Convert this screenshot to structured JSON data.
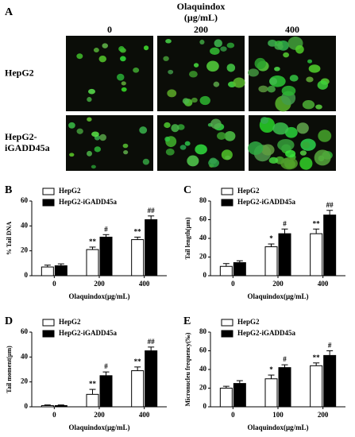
{
  "panel_a": {
    "panel": "A",
    "title": [
      "Olaquindox",
      "(μg/mL)"
    ],
    "columns": [
      "0",
      "200",
      "400"
    ],
    "rows": [
      [
        "HepG2"
      ],
      [
        "HepG2-",
        "iGADD45a"
      ]
    ]
  },
  "chart_data": [
    {
      "type": "bar",
      "panel": "B",
      "ylabel": "% Tail DNA",
      "xlabel": "Olaquindox(μg/mL)",
      "categories": [
        "0",
        "200",
        "400"
      ],
      "ylim": [
        0,
        60
      ],
      "yticks": [
        0,
        20,
        40,
        60
      ],
      "series": [
        {
          "name": "HepG2",
          "color": "#ffffff",
          "values": [
            7,
            21,
            29
          ],
          "errors": [
            1.5,
            2,
            2
          ],
          "annotations": [
            null,
            "**",
            "**"
          ]
        },
        {
          "name": "HepG2-iGADD45a",
          "color": "#000000",
          "values": [
            8,
            31,
            45
          ],
          "errors": [
            1.5,
            2,
            3
          ],
          "annotations": [
            null,
            "#",
            "##"
          ]
        }
      ]
    },
    {
      "type": "bar",
      "panel": "C",
      "ylabel": "Tail length(μm)",
      "xlabel": "Olaquindox(μg/mL)",
      "categories": [
        "0",
        "200",
        "400"
      ],
      "ylim": [
        0,
        80
      ],
      "yticks": [
        0,
        20,
        40,
        60,
        80
      ],
      "series": [
        {
          "name": "HepG2",
          "color": "#ffffff",
          "values": [
            10,
            31,
            45
          ],
          "errors": [
            3,
            3,
            5
          ],
          "annotations": [
            null,
            "*",
            "**"
          ]
        },
        {
          "name": "HepG2-iGADD45a",
          "color": "#000000",
          "values": [
            14,
            45,
            65
          ],
          "errors": [
            2,
            5,
            5
          ],
          "annotations": [
            null,
            "#",
            "##"
          ]
        }
      ]
    },
    {
      "type": "bar",
      "panel": "D",
      "ylabel": "Tail moment(μm)",
      "xlabel": "Olaquindox(μg/mL)",
      "categories": [
        "0",
        "200",
        "400"
      ],
      "ylim": [
        0,
        60
      ],
      "yticks": [
        0,
        20,
        40,
        60
      ],
      "series": [
        {
          "name": "HepG2",
          "color": "#ffffff",
          "values": [
            1,
            10,
            29
          ],
          "errors": [
            0.5,
            4,
            3
          ],
          "annotations": [
            null,
            "**",
            "**"
          ]
        },
        {
          "name": "HepG2-iGADD45a",
          "color": "#000000",
          "values": [
            1,
            25,
            45
          ],
          "errors": [
            0.5,
            3,
            3
          ],
          "annotations": [
            null,
            "#",
            "##"
          ]
        }
      ]
    },
    {
      "type": "bar",
      "panel": "E",
      "ylabel": "Micronucleu frequency(‰)",
      "xlabel": "Olaquindox(μg/mL)",
      "categories": [
        "0",
        "100",
        "200"
      ],
      "ylim": [
        0,
        80
      ],
      "yticks": [
        0,
        20,
        40,
        60,
        80
      ],
      "series": [
        {
          "name": "HepG2",
          "color": "#ffffff",
          "values": [
            20,
            30,
            44
          ],
          "errors": [
            2,
            4,
            3
          ],
          "annotations": [
            null,
            "*",
            "**"
          ]
        },
        {
          "name": "HepG2-iGADD45a",
          "color": "#000000",
          "values": [
            25,
            42,
            55
          ],
          "errors": [
            3,
            3,
            5
          ],
          "annotations": [
            null,
            "#",
            "#"
          ]
        }
      ]
    }
  ]
}
